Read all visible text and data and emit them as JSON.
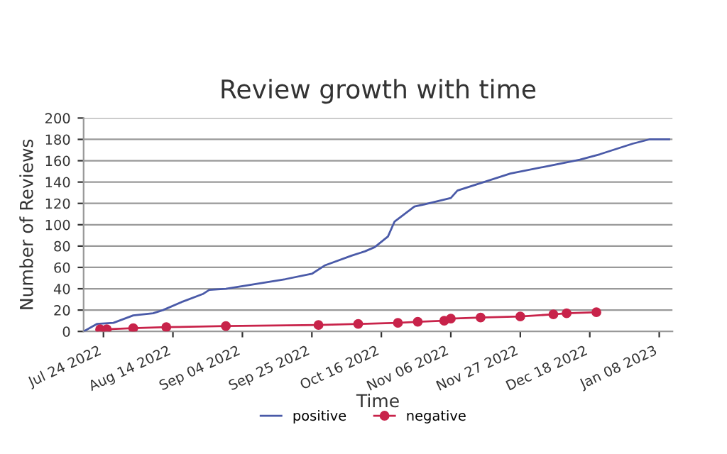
{
  "chart_data": {
    "type": "line",
    "title": "Review growth with time",
    "xlabel": "Time",
    "ylabel": "Number of Reviews",
    "xlim": [
      "2022-07-18",
      "2023-01-12"
    ],
    "xticks": [
      {
        "value": "2022-07-24",
        "label": "Jul 24 2022"
      },
      {
        "value": "2022-08-14",
        "label": "Aug 14 2022"
      },
      {
        "value": "2022-09-04",
        "label": "Sep 04 2022"
      },
      {
        "value": "2022-09-25",
        "label": "Sep 25 2022"
      },
      {
        "value": "2022-10-16",
        "label": "Oct 16 2022"
      },
      {
        "value": "2022-11-06",
        "label": "Nov 06 2022"
      },
      {
        "value": "2022-11-27",
        "label": "Nov 27 2022"
      },
      {
        "value": "2022-12-18",
        "label": "Dec 18 2022"
      },
      {
        "value": "2023-01-08",
        "label": "Jan 08 2023"
      }
    ],
    "ylim": [
      0,
      200
    ],
    "yticks": [
      0,
      20,
      40,
      60,
      80,
      100,
      120,
      140,
      160,
      180,
      200
    ],
    "grid": "y",
    "legend": "bottom",
    "series": [
      {
        "name": "positive",
        "color": "#4a5aa8",
        "marker": "none",
        "x": [
          "2022-07-18",
          "2022-07-22",
          "2022-07-27",
          "2022-08-02",
          "2022-08-08",
          "2022-08-11",
          "2022-08-17",
          "2022-08-23",
          "2022-08-25",
          "2022-08-30",
          "2022-09-11",
          "2022-09-17",
          "2022-09-25",
          "2022-09-29",
          "2022-10-07",
          "2022-10-11",
          "2022-10-14",
          "2022-10-18",
          "2022-10-20",
          "2022-10-26",
          "2022-10-29",
          "2022-11-06",
          "2022-11-08",
          "2022-11-14",
          "2022-11-24",
          "2022-12-07",
          "2022-12-15",
          "2022-12-21",
          "2022-12-31",
          "2023-01-05",
          "2023-01-11"
        ],
        "values": [
          0,
          7,
          8,
          15,
          17,
          20,
          28,
          35,
          39,
          40,
          46,
          49,
          54,
          62,
          71,
          75,
          79,
          89,
          103,
          117,
          119,
          125,
          132,
          138,
          148,
          156,
          161,
          166,
          176,
          180,
          180
        ]
      },
      {
        "name": "negative",
        "color": "#c8234a",
        "marker": "circle",
        "x": [
          "2022-07-23",
          "2022-07-25",
          "2022-08-02",
          "2022-08-12",
          "2022-08-30",
          "2022-09-27",
          "2022-10-09",
          "2022-10-21",
          "2022-10-27",
          "2022-11-04",
          "2022-11-06",
          "2022-11-15",
          "2022-11-27",
          "2022-12-07",
          "2022-12-11",
          "2022-12-20"
        ],
        "values": [
          2,
          2,
          3,
          4,
          5,
          6,
          7,
          8,
          9,
          10,
          12,
          13,
          14,
          16,
          17,
          18
        ]
      }
    ]
  }
}
